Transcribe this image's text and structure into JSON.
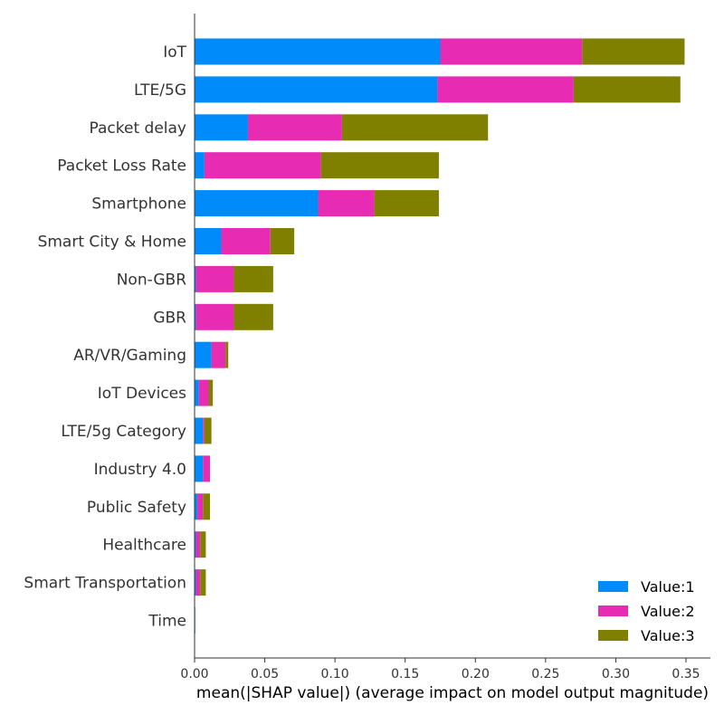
{
  "chart_data": {
    "type": "bar",
    "orientation": "horizontal",
    "stacked": true,
    "title": "",
    "xlabel": "mean(|SHAP value|) (average impact on model output magnitude)",
    "ylabel": "",
    "xlim": [
      0,
      0.365
    ],
    "xticks": [
      0.0,
      0.05,
      0.1,
      0.15,
      0.2,
      0.25,
      0.3,
      0.35
    ],
    "xtick_labels": [
      "0.00",
      "0.05",
      "0.10",
      "0.15",
      "0.20",
      "0.25",
      "0.30",
      "0.35"
    ],
    "grid": false,
    "legend_position": "bottom-right",
    "categories": [
      "IoT",
      "LTE/5G",
      "Packet delay",
      "Packet Loss Rate",
      "Smartphone",
      "Smart City & Home",
      "Non-GBR",
      "GBR",
      "AR/VR/Gaming",
      "IoT Devices",
      "LTE/5g Category",
      "Industry 4.0",
      "Public Safety",
      "Healthcare",
      "Smart Transportation",
      "Time"
    ],
    "series": [
      {
        "name": "Value:1",
        "color": "#008bfb",
        "values": [
          0.175,
          0.173,
          0.038,
          0.007,
          0.088,
          0.019,
          0.001,
          0.001,
          0.012,
          0.003,
          0.006,
          0.006,
          0.002,
          0.001,
          0.001,
          0.0005
        ]
      },
      {
        "name": "Value:2",
        "color": "#e72bb2",
        "values": [
          0.101,
          0.097,
          0.067,
          0.083,
          0.04,
          0.035,
          0.027,
          0.027,
          0.01,
          0.007,
          0.001,
          0.005,
          0.004,
          0.003,
          0.003,
          0.0
        ]
      },
      {
        "name": "Value:3",
        "color": "#808000",
        "values": [
          0.073,
          0.076,
          0.104,
          0.084,
          0.046,
          0.017,
          0.028,
          0.028,
          0.002,
          0.003,
          0.005,
          0.0,
          0.005,
          0.004,
          0.004,
          0.0
        ]
      }
    ]
  }
}
